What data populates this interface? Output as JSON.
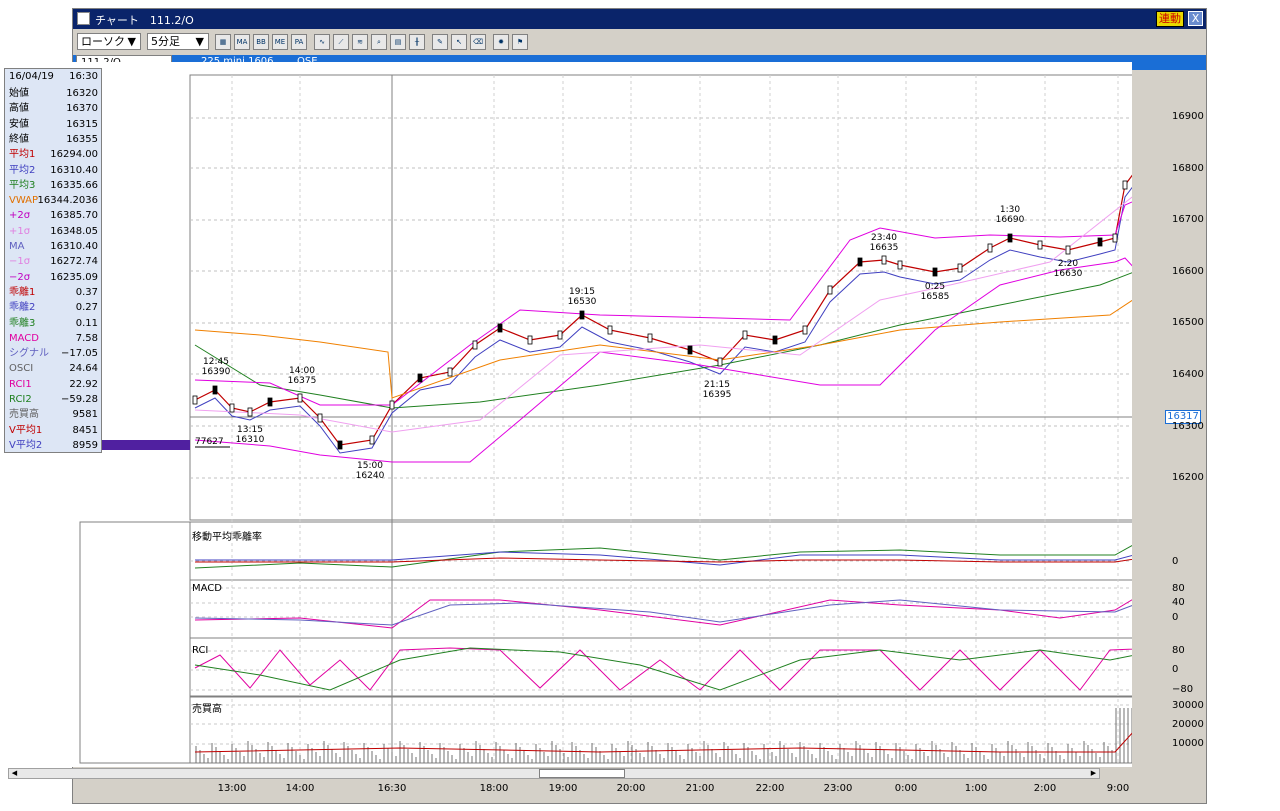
{
  "window": {
    "title": "チャート　111.2/O",
    "rendo_label": "連動",
    "close_label": "X"
  },
  "toolbar": {
    "chart_type": "ローソク",
    "interval": "5分足",
    "buttons": [
      "chart-icon",
      "MA",
      "BB",
      "ME",
      "PA",
      "line-icon",
      "draw-icon",
      "fib-icon",
      "zoom-icon",
      "calc-icon",
      "grid-icon",
      "pen-icon",
      "pointer-icon",
      "eraser-icon",
      "marker-icon",
      "flag-icon"
    ]
  },
  "infobar": {
    "symbol": "111.2/O",
    "name": "225 mini 1606",
    "exchange": "OSE"
  },
  "panel": {
    "date": "16/04/19",
    "time": "16:30",
    "rows": [
      {
        "k": "始値",
        "v": "16320",
        "c": "#000"
      },
      {
        "k": "高値",
        "v": "16370",
        "c": "#000"
      },
      {
        "k": "安値",
        "v": "16315",
        "c": "#000"
      },
      {
        "k": "終値",
        "v": "16355",
        "c": "#000"
      },
      {
        "k": "平均1",
        "v": "16294.00",
        "c": "#c00000"
      },
      {
        "k": "平均2",
        "v": "16310.40",
        "c": "#4040c0"
      },
      {
        "k": "平均3",
        "v": "16335.66",
        "c": "#208020"
      },
      {
        "k": "VWAP",
        "v": "16344.2036",
        "c": "#e07000"
      },
      {
        "k": "+2σ",
        "v": "16385.70",
        "c": "#c000c0"
      },
      {
        "k": "+1σ",
        "v": "16348.05",
        "c": "#e080e0"
      },
      {
        "k": "MA",
        "v": "16310.40",
        "c": "#6060c0"
      },
      {
        "k": "−1σ",
        "v": "16272.74",
        "c": "#e080e0"
      },
      {
        "k": "−2σ",
        "v": "16235.09",
        "c": "#c000c0"
      },
      {
        "k": "乖離1",
        "v": "0.37",
        "c": "#c00000"
      },
      {
        "k": "乖離2",
        "v": "0.27",
        "c": "#4040c0"
      },
      {
        "k": "乖離3",
        "v": "0.11",
        "c": "#208020"
      },
      {
        "k": "MACD",
        "v": "7.58",
        "c": "#e000a0"
      },
      {
        "k": "シグナル",
        "v": "−17.05",
        "c": "#6060c0"
      },
      {
        "k": "OSCI",
        "v": "24.64",
        "c": "#606060"
      },
      {
        "k": "RCI1",
        "v": "22.92",
        "c": "#e000a0"
      },
      {
        "k": "RCI2",
        "v": "−59.28",
        "c": "#208020"
      },
      {
        "k": "売買高",
        "v": "9581",
        "c": "#606060"
      },
      {
        "k": "V平均1",
        "v": "8451",
        "c": "#c00000"
      },
      {
        "k": "V平均2",
        "v": "8959",
        "c": "#4040c0"
      }
    ],
    "volume_marker": "77627"
  },
  "axes": {
    "x_labels": [
      "13:00",
      "14:00",
      "16:30",
      "18:00",
      "19:00",
      "20:00",
      "21:00",
      "22:00",
      "23:00",
      "0:00",
      "1:00",
      "2:00",
      "9:00"
    ],
    "price_labels": [
      "16900",
      "16800",
      "16700",
      "16600",
      "16500",
      "16400",
      "16300",
      "16200"
    ],
    "current_price": "16317",
    "dev_labels": [
      "0"
    ],
    "macd_labels": [
      "80",
      "40",
      "0"
    ],
    "rci_labels": [
      "80",
      "0",
      "−80"
    ],
    "vol_labels": [
      "30000",
      "20000",
      "10000"
    ]
  },
  "subcharts": {
    "dev_title": "移動平均乖離率",
    "macd_title": "MACD",
    "rci_title": "RCI",
    "vol_title": "売買高"
  },
  "annotations": [
    {
      "t": "12:45",
      "p": "16390"
    },
    {
      "t": "14:00",
      "p": "16375"
    },
    {
      "t": "13:15",
      "p": "16310"
    },
    {
      "t": "15:00",
      "p": "16240"
    },
    {
      "t": "19:15",
      "p": "16530"
    },
    {
      "t": "21:15",
      "p": "16395"
    },
    {
      "t": "23:40",
      "p": "16635"
    },
    {
      "t": "0:25",
      "p": "16585"
    },
    {
      "t": "1:30",
      "p": "16690"
    },
    {
      "t": "2:20",
      "p": "16630"
    }
  ],
  "colors": {
    "titlebar": "#0a246a",
    "infobar": "#1a6ed6",
    "ma1": "#c00000",
    "ma2": "#4040c0",
    "ma3": "#208020",
    "vwap": "#f08000",
    "bb2": "#e000e0",
    "bb1": "#f0a0f0"
  }
}
